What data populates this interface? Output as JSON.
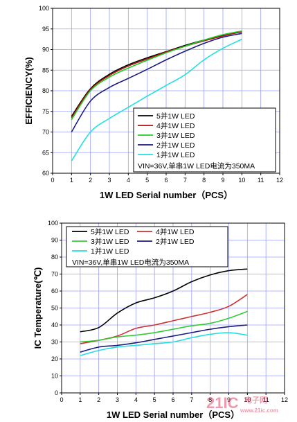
{
  "chart_data": [
    {
      "type": "line",
      "xlabel": "1W  LED Serial number（PCS）",
      "ylabel": "EFFICIENCY(%)",
      "xlim": [
        0,
        12
      ],
      "ylim": [
        60,
        100
      ],
      "xticks": [
        0,
        1,
        2,
        3,
        4,
        5,
        6,
        7,
        8,
        9,
        10,
        11,
        12
      ],
      "yticks": [
        60,
        65,
        70,
        75,
        80,
        85,
        90,
        95,
        100
      ],
      "grid": true,
      "legend_position": "bottom-right",
      "note": "VIN=36V,单串1W LED电流为350MA",
      "x": [
        1,
        2,
        3,
        4,
        5,
        6,
        7,
        8,
        9,
        10
      ],
      "series": [
        {
          "name": "5并1W LED",
          "color": "#000000",
          "values": [
            73.8,
            80.5,
            84,
            86.3,
            88,
            89.5,
            91,
            92.3,
            93.4,
            94.3
          ]
        },
        {
          "name": "4并1W LED",
          "color": "#b01010",
          "values": [
            73.5,
            80.3,
            83.7,
            86,
            87.7,
            89.4,
            90.8,
            92.1,
            93.3,
            94.4
          ]
        },
        {
          "name": "3并1W LED",
          "color": "#22cc22",
          "values": [
            73,
            80,
            83.3,
            85.5,
            87.4,
            89.2,
            90.8,
            92.3,
            93.6,
            94.5
          ]
        },
        {
          "name": "2并1W LED",
          "color": "#1a1a80",
          "values": [
            70,
            77.5,
            80.8,
            83,
            85.2,
            87.5,
            89.6,
            91.5,
            93,
            93.9
          ]
        },
        {
          "name": "1并1W LED",
          "color": "#22e0e0",
          "values": [
            63,
            70,
            73.3,
            76,
            78.7,
            81.3,
            83.9,
            87.5,
            90.3,
            92.5
          ]
        }
      ]
    },
    {
      "type": "line",
      "xlabel": "1W  LED Serial number（PCS）",
      "ylabel": "IC Temperature(℃)",
      "xlim": [
        0,
        12
      ],
      "ylim": [
        0,
        100
      ],
      "xticks": [
        0,
        1,
        2,
        3,
        4,
        5,
        6,
        7,
        8,
        9,
        10,
        11,
        12
      ],
      "yticks": [
        0,
        10,
        20,
        30,
        40,
        50,
        60,
        70,
        80,
        90,
        100
      ],
      "grid": true,
      "legend_position": "top-left",
      "note": "VIN=36V,单串1W LED电流为350MA",
      "x": [
        1,
        2,
        3,
        4,
        5,
        6,
        7,
        8,
        9,
        10
      ],
      "series": [
        {
          "name": "5并1W LED",
          "color": "#000000",
          "values": [
            36,
            38.5,
            47,
            53,
            56,
            60,
            65.5,
            69.5,
            72,
            73
          ]
        },
        {
          "name": "4并1W LED",
          "color": "#cc3333",
          "values": [
            29,
            31,
            33.5,
            38,
            40,
            42.5,
            45,
            47.5,
            51,
            58
          ]
        },
        {
          "name": "3并1W LED",
          "color": "#33cc33",
          "values": [
            30,
            31,
            33,
            34,
            35.5,
            37.5,
            39.5,
            41,
            44,
            48
          ]
        },
        {
          "name": "2并1W LED",
          "color": "#1a1a80",
          "values": [
            24,
            27,
            28,
            29.5,
            31.5,
            33.5,
            35.5,
            37.5,
            39,
            40
          ]
        },
        {
          "name": "1并1W LED",
          "color": "#22e0e0",
          "values": [
            22,
            25,
            27,
            28,
            29,
            30,
            32.5,
            34.5,
            35.5,
            34
          ]
        }
      ]
    }
  ],
  "watermark": {
    "logo": "21IC",
    "text": "电子网",
    "url": "www.21ic.com"
  }
}
